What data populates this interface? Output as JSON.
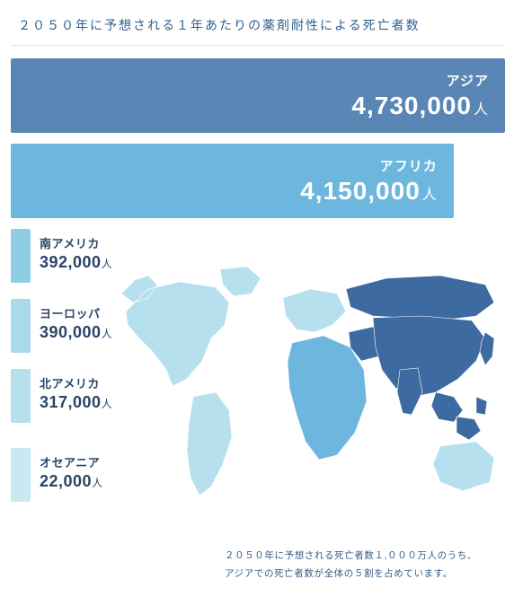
{
  "palette": {
    "title_color": "#2f5f8f",
    "asia": "#5a86b5",
    "africa": "#6db7de",
    "south_america": "#8fcde5",
    "europe": "#a9daea",
    "north_america": "#b7e0ee",
    "oceania": "#c8e9f2",
    "text_dark": "#2a4466",
    "footnote_color": "#355c87",
    "map_light": "#b7e0ee",
    "map_mid": "#6db7de",
    "map_dark": "#3d6aa0",
    "background": "#ffffff"
  },
  "title": "２０５０年に予想される１年あたりの薬剤耐性による死亡者数",
  "unit": "人",
  "large_bars": [
    {
      "region": "アジア",
      "value": "4,730,000",
      "color_key": "asia",
      "width_pct": 100
    },
    {
      "region": "アフリカ",
      "value": "4,150,000",
      "color_key": "africa",
      "width_pct": 90
    }
  ],
  "small_bars": [
    {
      "region": "南アメリカ",
      "value": "392,000",
      "color_key": "south_america"
    },
    {
      "region": "ヨーロッパ",
      "value": "390,000",
      "color_key": "europe"
    },
    {
      "region": "北アメリカ",
      "value": "317,000",
      "color_key": "north_america"
    },
    {
      "region": "オセアニア",
      "value": "22,000",
      "color_key": "oceania"
    }
  ],
  "footnote_line1": "２０５０年に予想される死亡者数１,０００万人のうち、",
  "footnote_line2": "アジアでの死亡者数が全体の５割を占めています。",
  "typography": {
    "title_fontsize": 14,
    "large_value_fontsize": 28,
    "large_region_fontsize": 15,
    "small_region_fontsize": 13,
    "small_value_fontsize": 18,
    "footnote_fontsize": 10.5
  }
}
